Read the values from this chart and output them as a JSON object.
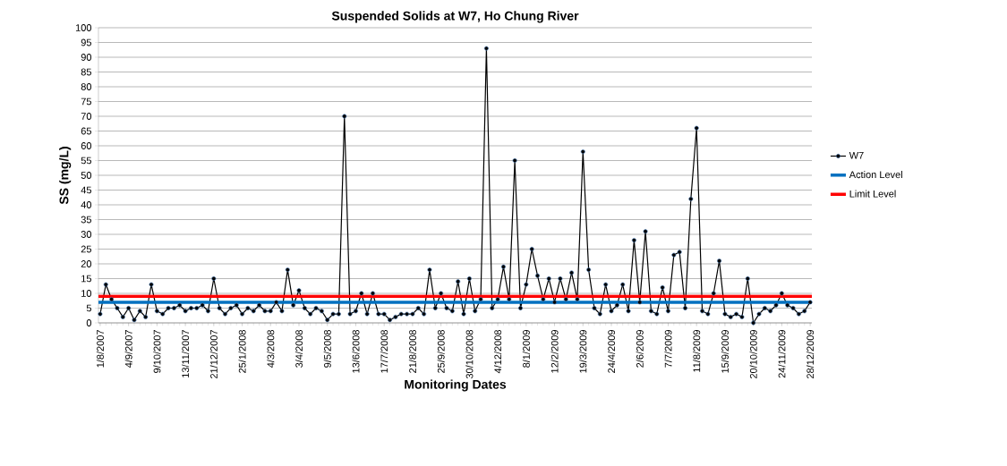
{
  "chart_data": {
    "type": "line",
    "title": "Suspended Solids at W7, Ho Chung River",
    "xlabel": "Monitoring Dates",
    "ylabel": "SS (mg/L)",
    "categories": [
      "1/8/2007",
      null,
      null,
      null,
      null,
      "4/9/2007",
      null,
      null,
      null,
      null,
      "9/10/2007",
      null,
      null,
      null,
      null,
      "13/11/2007",
      null,
      null,
      null,
      null,
      "21/12/2007",
      null,
      null,
      null,
      null,
      "25/1/2008",
      null,
      null,
      null,
      null,
      "4/3/2008",
      null,
      null,
      null,
      null,
      "3/4/2008",
      null,
      null,
      null,
      null,
      "9/5/2008",
      null,
      null,
      null,
      null,
      "13/6/2008",
      null,
      null,
      null,
      null,
      "17/7/2008",
      null,
      null,
      null,
      null,
      "21/8/2008",
      null,
      null,
      null,
      null,
      "25/9/2008",
      null,
      null,
      null,
      null,
      "30/10/2008",
      null,
      null,
      null,
      null,
      "4/12/2008",
      null,
      null,
      null,
      null,
      "8/1/2009",
      null,
      null,
      null,
      null,
      "12/2/2009",
      null,
      null,
      null,
      null,
      "19/3/2009",
      null,
      null,
      null,
      null,
      "24/4/2009",
      null,
      null,
      null,
      null,
      "2/6/2009",
      null,
      null,
      null,
      null,
      "7/7/2009",
      null,
      null,
      null,
      null,
      "11/8/2009",
      null,
      null,
      null,
      null,
      "15/9/2009",
      null,
      null,
      null,
      null,
      "20/10/2009",
      null,
      null,
      null,
      null,
      "24/11/2009",
      null,
      null,
      null,
      null,
      "28/12/2009"
    ],
    "series": [
      {
        "name": "W7",
        "color": "#000000",
        "values": [
          3,
          13,
          8,
          5,
          2,
          5,
          1,
          4,
          2,
          13,
          4,
          3,
          5,
          5,
          6,
          4,
          5,
          5,
          6,
          4,
          15,
          5,
          3,
          5,
          6,
          3,
          5,
          4,
          6,
          4,
          4,
          7,
          4,
          18,
          6,
          11,
          5,
          3,
          5,
          4,
          1,
          3,
          3,
          70,
          3,
          4,
          10,
          3,
          10,
          3,
          3,
          1,
          2,
          3,
          3,
          3,
          5,
          3,
          18,
          5,
          10,
          5,
          4,
          14,
          3,
          15,
          4,
          8,
          93,
          5,
          8,
          19,
          8,
          55,
          5,
          13,
          25,
          16,
          8,
          15,
          7,
          15,
          8,
          17,
          8,
          58,
          18,
          5,
          3,
          13,
          4,
          6,
          13,
          4,
          28,
          7,
          31,
          4,
          3,
          12,
          4,
          23,
          24,
          5,
          42,
          66,
          4,
          3,
          10,
          21,
          3,
          2,
          3,
          2,
          15,
          0,
          3,
          5,
          4,
          6,
          10,
          6,
          5,
          3,
          4,
          7
        ]
      }
    ],
    "ref_lines": [
      {
        "axis": "y",
        "value": 7,
        "label": "Action Level",
        "color": "#0070c0"
      },
      {
        "axis": "y",
        "value": 9,
        "label": "Limit Level",
        "color": "#ff0000"
      }
    ],
    "ylim": [
      0,
      100
    ],
    "yticks": [
      0,
      5,
      10,
      15,
      20,
      25,
      30,
      35,
      40,
      45,
      50,
      55,
      60,
      65,
      70,
      75,
      80,
      85,
      90,
      95,
      100
    ],
    "grid": "y",
    "legend": "right",
    "marker": "circle",
    "line_style": "solid"
  }
}
